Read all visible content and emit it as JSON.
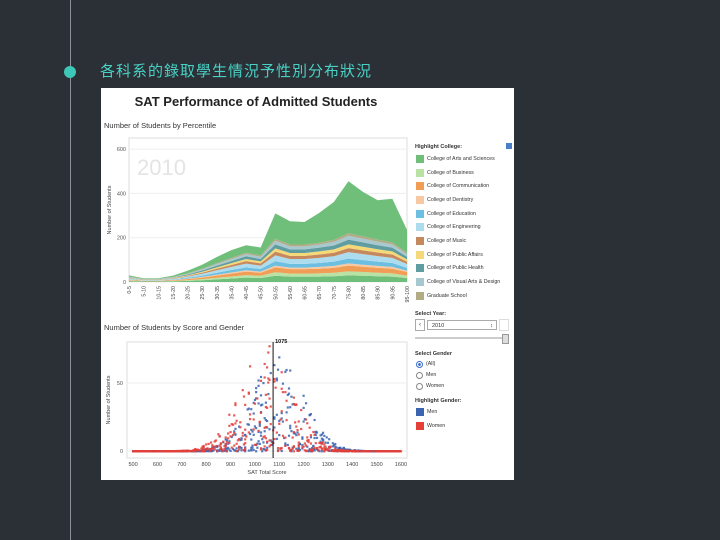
{
  "slide": {
    "title": "各科系的錄取學生情況予性別分布狀況"
  },
  "dashboard": {
    "title": "SAT Performance of Admitted Students",
    "top_title": "Number of Students by Percentile",
    "bottom_title": "Number of Students by Score and Gender",
    "year_watermark": "2010",
    "highlight_college_label": "Highlight College:",
    "select_year_label": "Select Year:",
    "select_year_value": "2010",
    "select_gender_label": "Select Gender",
    "gender_options": [
      "(All)",
      "Men",
      "Women"
    ],
    "gender_selected": "(All)",
    "highlight_gender_label": "Highlight Gender:",
    "gender_legend": [
      {
        "label": "Men",
        "color": "#3a64b0"
      },
      {
        "label": "Women",
        "color": "#e3403a"
      }
    ],
    "colleges": [
      {
        "label": "College of Arts and Sciences",
        "color": "#6fbf7a"
      },
      {
        "label": "College of Business",
        "color": "#b9e3a4"
      },
      {
        "label": "College of Communication",
        "color": "#f29d55"
      },
      {
        "label": "College of Dentistry",
        "color": "#f7c9a3"
      },
      {
        "label": "College of Education",
        "color": "#6cbfe0"
      },
      {
        "label": "College of Engineering",
        "color": "#aedcef"
      },
      {
        "label": "College of Music",
        "color": "#c6885d"
      },
      {
        "label": "College of Public Affairs",
        "color": "#f5d878"
      },
      {
        "label": "College of Public Health",
        "color": "#5f9da0"
      },
      {
        "label": "College of Visual Arts & Design",
        "color": "#a8c8cf"
      },
      {
        "label": "Graduate School",
        "color": "#b3aa86"
      }
    ]
  },
  "chart_data": [
    {
      "type": "area",
      "title": "Number of Students by Percentile",
      "ylabel": "Number of Students",
      "ylim": [
        0,
        650
      ],
      "yticks": [
        0,
        200,
        400,
        600
      ],
      "categories": [
        "0-5",
        "5-10",
        "10-15",
        "15-20",
        "20-25",
        "25-30",
        "30-35",
        "35-40",
        "40-45",
        "45-50",
        "50-55",
        "55-60",
        "60-65",
        "65-70",
        "70-75",
        "75-80",
        "80-85",
        "85-90",
        "90-95",
        "95-100"
      ],
      "series": [
        {
          "values": [
            4,
            2,
            2,
            3,
            5,
            8,
            12,
            16,
            20,
            18,
            28,
            24,
            24,
            24,
            26,
            30,
            28,
            26,
            24,
            18
          ]
        },
        {
          "values": [
            2,
            1,
            1,
            2,
            3,
            5,
            7,
            9,
            11,
            10,
            16,
            14,
            14,
            15,
            16,
            18,
            17,
            16,
            15,
            11
          ]
        },
        {
          "values": [
            3,
            2,
            2,
            3,
            5,
            7,
            10,
            13,
            16,
            14,
            22,
            20,
            20,
            21,
            22,
            26,
            24,
            22,
            21,
            16
          ]
        },
        {
          "values": [
            1,
            1,
            1,
            1,
            2,
            3,
            4,
            5,
            6,
            5,
            8,
            7,
            7,
            8,
            9,
            10,
            9,
            9,
            8,
            6
          ]
        },
        {
          "values": [
            2,
            1,
            1,
            2,
            4,
            6,
            9,
            11,
            13,
            12,
            20,
            17,
            17,
            18,
            19,
            22,
            21,
            19,
            18,
            13
          ]
        },
        {
          "values": [
            3,
            2,
            2,
            3,
            5,
            8,
            11,
            14,
            17,
            15,
            26,
            22,
            22,
            23,
            24,
            29,
            27,
            25,
            23,
            17
          ]
        },
        {
          "values": [
            2,
            1,
            1,
            2,
            3,
            5,
            7,
            9,
            11,
            10,
            17,
            14,
            14,
            15,
            16,
            18,
            17,
            16,
            15,
            11
          ]
        },
        {
          "values": [
            2,
            1,
            1,
            2,
            3,
            4,
            6,
            8,
            10,
            9,
            15,
            13,
            13,
            14,
            15,
            17,
            16,
            15,
            14,
            10
          ]
        },
        {
          "values": [
            2,
            1,
            1,
            2,
            4,
            6,
            8,
            10,
            12,
            11,
            18,
            16,
            16,
            17,
            18,
            21,
            20,
            18,
            17,
            12
          ]
        },
        {
          "values": [
            2,
            1,
            1,
            2,
            3,
            5,
            7,
            9,
            10,
            10,
            16,
            14,
            14,
            14,
            16,
            18,
            17,
            16,
            15,
            11
          ]
        },
        {
          "values": [
            1,
            1,
            1,
            1,
            2,
            3,
            4,
            5,
            6,
            6,
            9,
            8,
            8,
            8,
            9,
            11,
            10,
            9,
            9,
            6
          ]
        },
        {
          "values": [
            6,
            3,
            3,
            6,
            12,
            18,
            28,
            35,
            34,
            36,
            115,
            105,
            102,
            135,
            171,
            235,
            200,
            178,
            197,
            104
          ]
        }
      ]
    },
    {
      "type": "scatter",
      "title": "Number of Students by Score and Gender",
      "xlabel": "SAT Total Score",
      "ylabel": "Number of Students",
      "xlim": [
        475,
        1625
      ],
      "xticks": [
        500,
        600,
        700,
        800,
        900,
        1000,
        1100,
        1200,
        1300,
        1400,
        1500,
        1600
      ],
      "ylim": [
        -5,
        80
      ],
      "yticks": [
        0,
        50
      ],
      "reference_line": {
        "x": 1075,
        "label": "1075"
      },
      "series": [
        {
          "name": "Men",
          "peak_x": 1095,
          "peak_y": 70
        },
        {
          "name": "Women",
          "peak_x": 1045,
          "peak_y": 78
        }
      ]
    }
  ]
}
